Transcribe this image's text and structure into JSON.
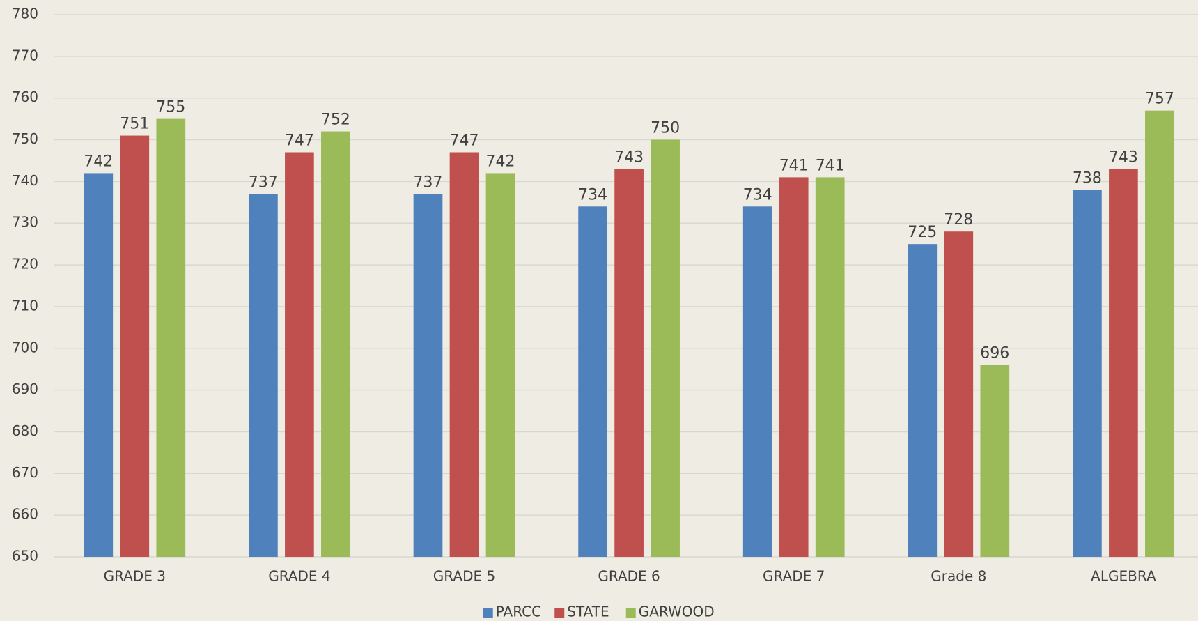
{
  "chart_data": {
    "type": "bar",
    "categories": [
      "GRADE 3",
      "GRADE 4",
      "GRADE 5",
      "GRADE 6",
      "GRADE 7",
      "Grade 8",
      "ALGEBRA"
    ],
    "series": [
      {
        "name": "PARCC",
        "color": "#4f81bd",
        "values": [
          742,
          737,
          737,
          734,
          734,
          725,
          738
        ]
      },
      {
        "name": "STATE",
        "color": "#c0504d",
        "values": [
          751,
          747,
          747,
          743,
          741,
          728,
          743
        ]
      },
      {
        "name": "GARWOOD",
        "color": "#9bbb59",
        "values": [
          755,
          752,
          742,
          750,
          741,
          696,
          757
        ]
      }
    ],
    "ylim": [
      650,
      780
    ],
    "yticks": [
      650,
      660,
      670,
      680,
      690,
      700,
      710,
      720,
      730,
      740,
      750,
      760,
      770,
      780
    ],
    "grid": true,
    "legend": "bottom"
  }
}
